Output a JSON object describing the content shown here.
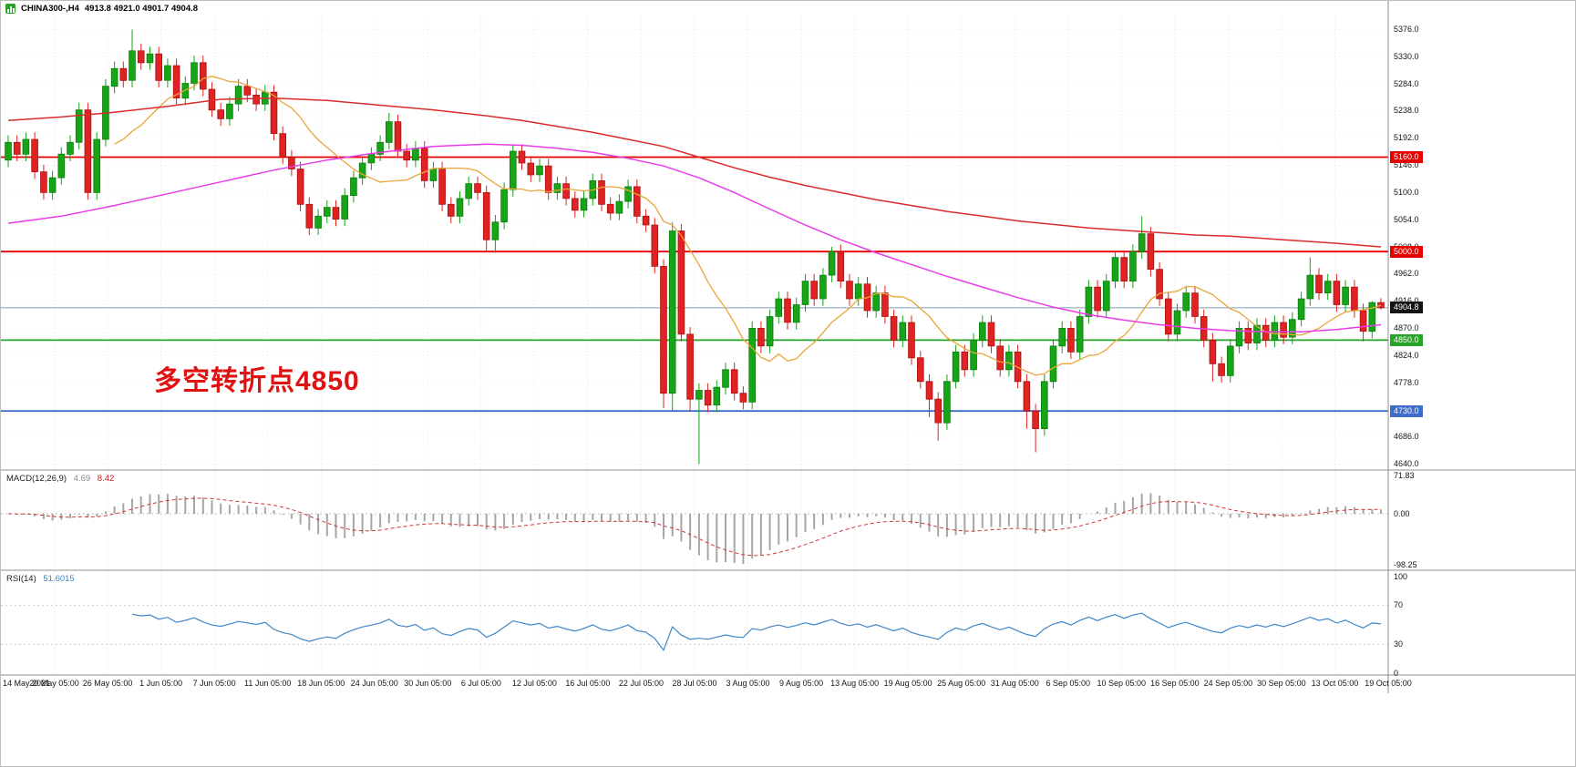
{
  "header": {
    "symbol": "CHINA300-,H4",
    "ohlc": "4913.8 4921.0 4901.7 4904.8"
  },
  "annotation": {
    "text": "多空转折点4850",
    "color": "#e01111"
  },
  "indicators": {
    "macd": {
      "label": "MACD(12,26,9)",
      "value_main": "4.69",
      "value_signal": "8.42",
      "axis_labels": [
        {
          "text": "71.83",
          "value": 71.83
        },
        {
          "text": "0.00",
          "value": 0
        },
        {
          "text": "-98.25",
          "value": -98.25
        }
      ]
    },
    "rsi": {
      "label": "RSI(14)",
      "value": "51.6015",
      "axis_labels": [
        {
          "text": "100",
          "value": 100
        },
        {
          "text": "70",
          "value": 70
        },
        {
          "text": "30",
          "value": 30
        },
        {
          "text": "0",
          "value": 0
        }
      ],
      "levels": [
        70,
        30
      ]
    }
  },
  "chart_data": {
    "type": "candlestick",
    "symbol": "CHINA300-",
    "timeframe": "H4",
    "last_candle": {
      "open": 4913.8,
      "high": 4921.0,
      "low": 4901.7,
      "close": 4904.8
    },
    "ylim": [
      4628,
      5399
    ],
    "grid": true,
    "price_axis": {
      "ticks": [
        "5376.0",
        "5330.0",
        "5284.0",
        "5238.0",
        "5192.0",
        "5146.0",
        "5100.0",
        "5054.0",
        "5008.0",
        "4962.0",
        "4916.0",
        "4870.0",
        "4824.0",
        "4778.0",
        "4732.0",
        "4686.0",
        "4640.0"
      ]
    },
    "x_labels": [
      "14 May 2021",
      "20 May 05:00",
      "26 May 05:00",
      "1 Jun 05:00",
      "7 Jun 05:00",
      "11 Jun 05:00",
      "18 Jun 05:00",
      "24 Jun 05:00",
      "30 Jun 05:00",
      "6 Jul 05:00",
      "12 Jul 05:00",
      "16 Jul 05:00",
      "22 Jul 05:00",
      "28 Jul 05:00",
      "3 Aug 05:00",
      "9 Aug 05:00",
      "13 Aug 05:00",
      "19 Aug 05:00",
      "25 Aug 05:00",
      "31 Aug 05:00",
      "6 Sep 05:00",
      "10 Sep 05:00",
      "16 Sep 05:00",
      "24 Sep 05:00",
      "30 Sep 05:00",
      "13 Oct 05:00",
      "19 Oct 05:00"
    ],
    "levels": [
      {
        "value": 5160.0,
        "label": "5160.0",
        "color": "#e60000"
      },
      {
        "value": 5000.0,
        "label": "5000.0",
        "color": "#e60000"
      },
      {
        "value": 4850.0,
        "label": "4850.0",
        "color": "#27a327"
      },
      {
        "value": 4730.0,
        "label": "4730.0",
        "color": "#3f6bc9"
      }
    ],
    "current_price": {
      "value": 4904.8,
      "label": "4904.8",
      "line_color": "#7f9db9",
      "tag_bg": "#141414"
    },
    "colors": {
      "up": "#16a516",
      "up_border": "#0e7c0e",
      "down": "#e02222",
      "down_border": "#a81212",
      "macd_hist": "#a6a6a6",
      "macd_signal": "#d23434",
      "rsi": "#3e86c9"
    },
    "overlays": {
      "ma_fast": {
        "name": "SMA-13",
        "color": "#e9a63a",
        "period": 13
      },
      "ma_mid": {
        "name": "MA-mid",
        "color": "#e93ce9",
        "points": [
          [
            0,
            5048
          ],
          [
            6,
            5060
          ],
          [
            12,
            5078
          ],
          [
            18,
            5098
          ],
          [
            24,
            5118
          ],
          [
            30,
            5138
          ],
          [
            36,
            5155
          ],
          [
            42,
            5168
          ],
          [
            48,
            5178
          ],
          [
            54,
            5182
          ],
          [
            58,
            5180
          ],
          [
            62,
            5175
          ],
          [
            66,
            5168
          ],
          [
            70,
            5158
          ],
          [
            74,
            5145
          ],
          [
            78,
            5125
          ],
          [
            82,
            5100
          ],
          [
            86,
            5072
          ],
          [
            90,
            5045
          ],
          [
            94,
            5020
          ],
          [
            98,
            4998
          ],
          [
            102,
            4978
          ],
          [
            106,
            4958
          ],
          [
            110,
            4940
          ],
          [
            114,
            4922
          ],
          [
            118,
            4906
          ],
          [
            122,
            4893
          ],
          [
            126,
            4884
          ],
          [
            130,
            4876
          ],
          [
            134,
            4870
          ],
          [
            138,
            4866
          ],
          [
            142,
            4864
          ],
          [
            146,
            4864
          ],
          [
            150,
            4868
          ],
          [
            155,
            4876
          ]
        ]
      },
      "ma_slow": {
        "name": "MA-slow",
        "color": "#d92b2b",
        "points": [
          [
            0,
            5222
          ],
          [
            6,
            5228
          ],
          [
            12,
            5236
          ],
          [
            18,
            5246
          ],
          [
            24,
            5258
          ],
          [
            30,
            5260
          ],
          [
            36,
            5256
          ],
          [
            42,
            5248
          ],
          [
            48,
            5240
          ],
          [
            54,
            5230
          ],
          [
            58,
            5222
          ],
          [
            62,
            5212
          ],
          [
            66,
            5202
          ],
          [
            70,
            5190
          ],
          [
            74,
            5178
          ],
          [
            78,
            5160
          ],
          [
            82,
            5142
          ],
          [
            86,
            5126
          ],
          [
            90,
            5112
          ],
          [
            94,
            5100
          ],
          [
            98,
            5088
          ],
          [
            102,
            5078
          ],
          [
            106,
            5068
          ],
          [
            110,
            5060
          ],
          [
            114,
            5052
          ],
          [
            118,
            5046
          ],
          [
            122,
            5040
          ],
          [
            126,
            5036
          ],
          [
            130,
            5032
          ],
          [
            134,
            5028
          ],
          [
            138,
            5026
          ],
          [
            142,
            5022
          ],
          [
            146,
            5018
          ],
          [
            150,
            5014
          ],
          [
            155,
            5008
          ]
        ]
      }
    },
    "candles": [
      [
        5155,
        5197,
        5143,
        5185
      ],
      [
        5185,
        5197,
        5153,
        5165
      ],
      [
        5165,
        5202,
        5153,
        5190
      ],
      [
        5190,
        5202,
        5123,
        5135
      ],
      [
        5135,
        5147,
        5088,
        5100
      ],
      [
        5100,
        5137,
        5088,
        5125
      ],
      [
        5125,
        5177,
        5113,
        5165
      ],
      [
        5165,
        5197,
        5153,
        5185
      ],
      [
        5185,
        5252,
        5173,
        5240
      ],
      [
        5240,
        5252,
        5088,
        5100
      ],
      [
        5100,
        5202,
        5088,
        5190
      ],
      [
        5190,
        5292,
        5178,
        5280
      ],
      [
        5280,
        5322,
        5268,
        5310
      ],
      [
        5310,
        5322,
        5278,
        5290
      ],
      [
        5290,
        5376,
        5278,
        5340
      ],
      [
        5340,
        5352,
        5308,
        5320
      ],
      [
        5320,
        5347,
        5308,
        5335
      ],
      [
        5335,
        5347,
        5278,
        5290
      ],
      [
        5290,
        5327,
        5278,
        5315
      ],
      [
        5315,
        5327,
        5248,
        5260
      ],
      [
        5260,
        5297,
        5248,
        5285
      ],
      [
        5285,
        5332,
        5273,
        5320
      ],
      [
        5320,
        5332,
        5263,
        5275
      ],
      [
        5275,
        5287,
        5228,
        5240
      ],
      [
        5240,
        5252,
        5213,
        5225
      ],
      [
        5225,
        5262,
        5213,
        5250
      ],
      [
        5250,
        5292,
        5238,
        5280
      ],
      [
        5280,
        5292,
        5253,
        5265
      ],
      [
        5265,
        5277,
        5238,
        5250
      ],
      [
        5250,
        5282,
        5238,
        5270
      ],
      [
        5270,
        5282,
        5188,
        5200
      ],
      [
        5200,
        5212,
        5148,
        5160
      ],
      [
        5160,
        5172,
        5128,
        5140
      ],
      [
        5140,
        5152,
        5068,
        5080
      ],
      [
        5080,
        5092,
        5028,
        5040
      ],
      [
        5040,
        5072,
        5028,
        5060
      ],
      [
        5060,
        5087,
        5048,
        5075
      ],
      [
        5075,
        5087,
        5043,
        5055
      ],
      [
        5055,
        5107,
        5043,
        5095
      ],
      [
        5095,
        5137,
        5083,
        5125
      ],
      [
        5125,
        5162,
        5113,
        5150
      ],
      [
        5150,
        5177,
        5138,
        5165
      ],
      [
        5165,
        5197,
        5153,
        5185
      ],
      [
        5185,
        5235,
        5173,
        5220
      ],
      [
        5220,
        5232,
        5158,
        5170
      ],
      [
        5170,
        5182,
        5143,
        5155
      ],
      [
        5155,
        5187,
        5143,
        5175
      ],
      [
        5175,
        5187,
        5108,
        5120
      ],
      [
        5120,
        5152,
        5108,
        5140
      ],
      [
        5140,
        5152,
        5068,
        5080
      ],
      [
        5080,
        5092,
        5048,
        5060
      ],
      [
        5060,
        5102,
        5048,
        5090
      ],
      [
        5090,
        5127,
        5078,
        5115
      ],
      [
        5115,
        5127,
        5088,
        5100
      ],
      [
        5100,
        5112,
        5000,
        5020
      ],
      [
        5020,
        5062,
        4998,
        5050
      ],
      [
        5050,
        5117,
        5038,
        5105
      ],
      [
        5105,
        5182,
        5093,
        5170
      ],
      [
        5170,
        5182,
        5138,
        5150
      ],
      [
        5150,
        5162,
        5118,
        5130
      ],
      [
        5130,
        5157,
        5118,
        5145
      ],
      [
        5145,
        5157,
        5088,
        5100
      ],
      [
        5100,
        5127,
        5088,
        5115
      ],
      [
        5115,
        5127,
        5078,
        5090
      ],
      [
        5090,
        5102,
        5058,
        5070
      ],
      [
        5070,
        5102,
        5058,
        5090
      ],
      [
        5090,
        5132,
        5078,
        5120
      ],
      [
        5120,
        5132,
        5068,
        5080
      ],
      [
        5080,
        5092,
        5053,
        5065
      ],
      [
        5065,
        5097,
        5053,
        5085
      ],
      [
        5085,
        5122,
        5073,
        5110
      ],
      [
        5110,
        5122,
        5048,
        5060
      ],
      [
        5060,
        5072,
        5033,
        5045
      ],
      [
        5045,
        5057,
        4963,
        4975
      ],
      [
        4975,
        4987,
        4735,
        4760
      ],
      [
        4760,
        5050,
        4730,
        5035
      ],
      [
        5035,
        5047,
        4848,
        4860
      ],
      [
        4860,
        4872,
        4730,
        4750
      ],
      [
        4750,
        4777,
        4640,
        4765
      ],
      [
        4765,
        4777,
        4728,
        4740
      ],
      [
        4740,
        4782,
        4728,
        4770
      ],
      [
        4770,
        4812,
        4758,
        4800
      ],
      [
        4800,
        4812,
        4748,
        4760
      ],
      [
        4760,
        4772,
        4733,
        4745
      ],
      [
        4745,
        4882,
        4733,
        4870
      ],
      [
        4870,
        4882,
        4828,
        4840
      ],
      [
        4840,
        4902,
        4828,
        4890
      ],
      [
        4890,
        4932,
        4878,
        4920
      ],
      [
        4920,
        4932,
        4868,
        4880
      ],
      [
        4880,
        4922,
        4868,
        4910
      ],
      [
        4910,
        4962,
        4898,
        4950
      ],
      [
        4950,
        4962,
        4908,
        4920
      ],
      [
        4920,
        4972,
        4908,
        4960
      ],
      [
        4960,
        5008,
        4948,
        5000
      ],
      [
        5000,
        5012,
        4938,
        4950
      ],
      [
        4950,
        4962,
        4908,
        4920
      ],
      [
        4920,
        4957,
        4908,
        4945
      ],
      [
        4945,
        4957,
        4888,
        4900
      ],
      [
        4900,
        4942,
        4888,
        4930
      ],
      [
        4930,
        4942,
        4878,
        4890
      ],
      [
        4890,
        4902,
        4838,
        4850
      ],
      [
        4850,
        4892,
        4838,
        4880
      ],
      [
        4880,
        4892,
        4808,
        4820
      ],
      [
        4820,
        4832,
        4768,
        4780
      ],
      [
        4780,
        4792,
        4720,
        4750
      ],
      [
        4750,
        4762,
        4680,
        4710
      ],
      [
        4710,
        4792,
        4698,
        4780
      ],
      [
        4780,
        4842,
        4768,
        4830
      ],
      [
        4830,
        4842,
        4788,
        4800
      ],
      [
        4800,
        4862,
        4788,
        4850
      ],
      [
        4850,
        4892,
        4838,
        4880
      ],
      [
        4880,
        4892,
        4828,
        4840
      ],
      [
        4840,
        4852,
        4788,
        4800
      ],
      [
        4800,
        4842,
        4788,
        4830
      ],
      [
        4830,
        4842,
        4768,
        4780
      ],
      [
        4780,
        4792,
        4700,
        4730
      ],
      [
        4730,
        4742,
        4660,
        4700
      ],
      [
        4700,
        4792,
        4688,
        4780
      ],
      [
        4780,
        4852,
        4768,
        4840
      ],
      [
        4840,
        4882,
        4828,
        4870
      ],
      [
        4870,
        4882,
        4818,
        4830
      ],
      [
        4830,
        4902,
        4818,
        4890
      ],
      [
        4890,
        4952,
        4878,
        4940
      ],
      [
        4940,
        4952,
        4888,
        4900
      ],
      [
        4900,
        4962,
        4888,
        4950
      ],
      [
        4950,
        5002,
        4938,
        4990
      ],
      [
        4990,
        5002,
        4938,
        4950
      ],
      [
        4950,
        5012,
        4938,
        5000
      ],
      [
        5000,
        5060,
        4988,
        5030
      ],
      [
        5030,
        5042,
        4958,
        4970
      ],
      [
        4970,
        4982,
        4908,
        4920
      ],
      [
        4920,
        4932,
        4848,
        4860
      ],
      [
        4860,
        4912,
        4848,
        4900
      ],
      [
        4900,
        4942,
        4888,
        4930
      ],
      [
        4930,
        4942,
        4878,
        4890
      ],
      [
        4890,
        4902,
        4838,
        4850
      ],
      [
        4850,
        4862,
        4780,
        4810
      ],
      [
        4810,
        4822,
        4778,
        4790
      ],
      [
        4790,
        4852,
        4778,
        4840
      ],
      [
        4840,
        4882,
        4828,
        4870
      ],
      [
        4870,
        4882,
        4833,
        4845
      ],
      [
        4845,
        4887,
        4833,
        4875
      ],
      [
        4875,
        4887,
        4838,
        4850
      ],
      [
        4850,
        4892,
        4838,
        4880
      ],
      [
        4880,
        4892,
        4843,
        4855
      ],
      [
        4855,
        4897,
        4843,
        4885
      ],
      [
        4885,
        4932,
        4873,
        4920
      ],
      [
        4920,
        4990,
        4908,
        4960
      ],
      [
        4960,
        4972,
        4918,
        4930
      ],
      [
        4930,
        4962,
        4918,
        4950
      ],
      [
        4950,
        4962,
        4898,
        4910
      ],
      [
        4910,
        4952,
        4898,
        4940
      ],
      [
        4940,
        4952,
        4888,
        4900
      ],
      [
        4900,
        4912,
        4848,
        4865
      ],
      [
        4865,
        4916,
        4853,
        4913.8
      ],
      [
        4913.8,
        4921,
        4901.7,
        4904.8
      ]
    ]
  }
}
